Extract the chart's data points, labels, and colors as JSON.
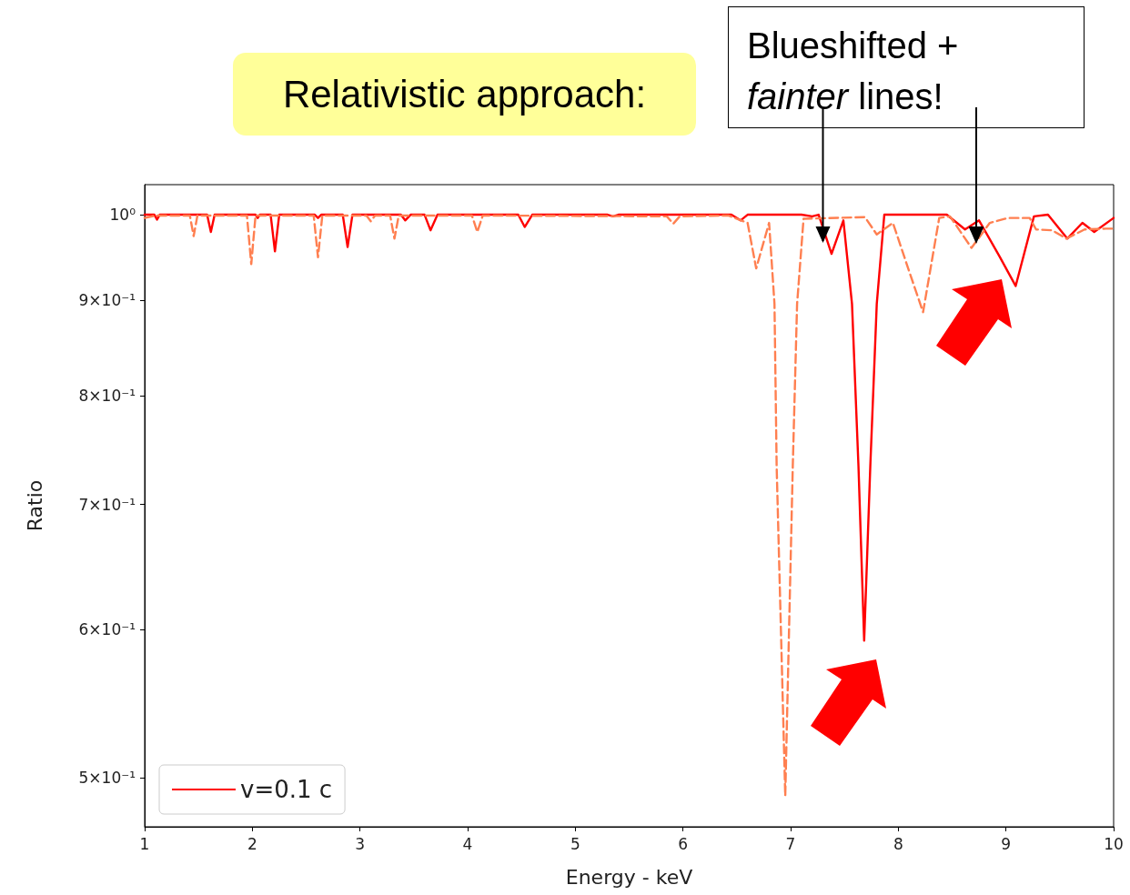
{
  "chart_data": {
    "type": "line",
    "title": "Relativistic approach:",
    "xlabel": "Energy - keV",
    "ylabel": "Ratio",
    "annotations": [
      {
        "text": "Blueshifted +\nfainter lines!",
        "x": 7.3,
        "y": 0.966
      }
    ],
    "xlim": [
      1,
      10
    ],
    "xticks": [
      1,
      2,
      3,
      4,
      5,
      6,
      7,
      8,
      9,
      10
    ],
    "ylim": [
      0.4708,
      1.0377
    ],
    "log": "y",
    "yticks": [
      {
        "value": 1,
        "label": "10⁰"
      },
      {
        "value": 0.9,
        "label": "9×10⁻¹"
      },
      {
        "value": 0.8,
        "label": "8×10⁻¹"
      },
      {
        "value": 0.7,
        "label": "7×10⁻¹"
      },
      {
        "value": 0.6,
        "label": "6×10⁻¹"
      },
      {
        "value": 0.5,
        "label": "5×10⁻¹"
      }
    ],
    "grid": false,
    "legend": "bottom left",
    "series": [
      {
        "name": "v=0.1 c",
        "color": "#ff0000",
        "line_style": "solid",
        "x": [
          1.0,
          1.09,
          1.115,
          1.14,
          1.58,
          1.615,
          1.65,
          2.03,
          2.05,
          2.07,
          2.17,
          2.21,
          2.25,
          2.58,
          2.61,
          2.64,
          2.84,
          2.885,
          2.93,
          3.38,
          3.42,
          3.47,
          3.6,
          3.655,
          3.72,
          4.47,
          4.53,
          4.6,
          5.3,
          5.35,
          5.4,
          6.45,
          6.535,
          6.6,
          7.1,
          7.2,
          7.26,
          7.38,
          7.49,
          7.57,
          7.63,
          7.683,
          7.74,
          7.8,
          7.87,
          8.45,
          8.62,
          8.75,
          8.94,
          9.09,
          9.26,
          9.39,
          9.57,
          9.71,
          9.82,
          10
        ],
        "values": [
          1.0,
          1.0,
          0.994,
          1.0,
          1.0,
          0.979,
          1.0,
          1.0,
          0.996,
          1.0,
          1.0,
          0.956,
          1.0,
          1.0,
          0.996,
          1.0,
          1.0,
          0.961,
          1.0,
          1.0,
          0.993,
          1.0,
          1.0,
          0.981,
          1.0,
          1.0,
          0.985,
          1.0,
          1.0,
          0.998,
          1.0,
          1.0,
          0.993,
          1.0,
          1.0,
          0.998,
          1.0,
          0.953,
          0.993,
          0.896,
          0.734,
          0.592,
          0.734,
          0.896,
          1.0,
          1.0,
          0.982,
          0.993,
          0.95,
          0.916,
          0.998,
          1.0,
          0.971,
          0.99,
          0.979,
          0.996
        ]
      },
      {
        "color": "#ff7f50",
        "line_style": "dashed",
        "x": [
          1.0,
          1.1,
          1.42,
          1.455,
          1.49,
          1.95,
          1.99,
          2.03,
          2.57,
          2.61,
          2.65,
          3.06,
          3.1,
          3.14,
          3.28,
          3.32,
          3.36,
          4.04,
          4.09,
          4.14,
          5.85,
          5.91,
          5.97,
          6.42,
          6.6,
          6.68,
          6.8,
          6.85,
          6.87,
          6.95,
          7.02,
          7.06,
          7.12,
          7.69,
          7.8,
          7.95,
          8.1,
          8.23,
          8.38,
          8.48,
          8.68,
          8.85,
          9.02,
          9.22,
          9.28,
          9.43,
          9.56,
          9.73,
          9.93,
          10
        ],
        "values": [
          0.996,
          0.999,
          0.999,
          0.974,
          0.999,
          0.999,
          0.941,
          0.999,
          0.999,
          0.949,
          0.999,
          0.999,
          0.992,
          0.999,
          0.999,
          0.971,
          0.999,
          0.999,
          0.979,
          0.999,
          0.998,
          0.989,
          0.998,
          0.999,
          0.99,
          0.936,
          0.99,
          0.896,
          0.734,
          0.489,
          0.734,
          0.896,
          0.995,
          0.997,
          0.976,
          0.99,
          0.933,
          0.887,
          0.996,
          0.998,
          0.96,
          0.99,
          0.996,
          0.996,
          0.982,
          0.981,
          0.971,
          0.982,
          0.983,
          0.983
        ]
      }
    ]
  }
}
